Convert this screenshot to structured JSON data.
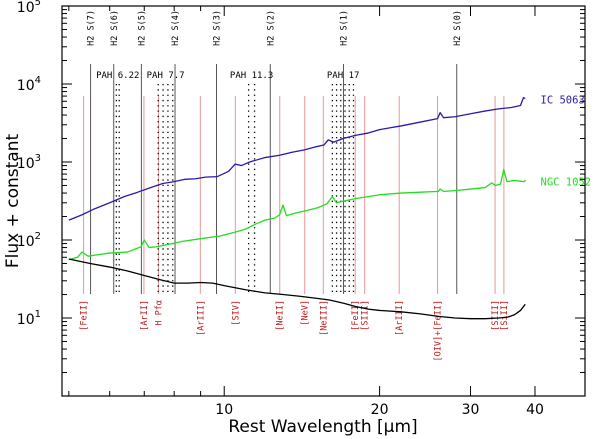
{
  "chart_data": {
    "type": "line",
    "title": "",
    "xlabel": "Rest Wavelength [μm]",
    "ylabel": "Flux + constant",
    "x_scale": "log",
    "y_scale": "log",
    "xlim": [
      4.85,
      50
    ],
    "ylim": [
      1,
      100000
    ],
    "x_ticks": [
      10,
      20,
      30,
      40
    ],
    "x_tick_labels": [
      "10",
      "20",
      "30",
      "40"
    ],
    "y_ticks": [
      10,
      100,
      1000,
      10000,
      100000
    ],
    "y_tick_labels": [
      "10¹",
      "10²",
      "10³",
      "10⁴",
      "10⁵"
    ],
    "y_tick_bases": [
      "10",
      "10",
      "10",
      "10",
      "10"
    ],
    "y_tick_exps": [
      "1",
      "2",
      "3",
      "4",
      "5"
    ],
    "grid": false,
    "series": [
      {
        "name": "IC 5063",
        "color": "#2a1aa8",
        "points": [
          [
            5.0,
            180
          ],
          [
            5.3,
            210
          ],
          [
            5.6,
            250
          ],
          [
            6.0,
            300
          ],
          [
            6.4,
            360
          ],
          [
            6.8,
            410
          ],
          [
            7.2,
            470
          ],
          [
            7.6,
            530
          ],
          [
            8.0,
            560
          ],
          [
            8.4,
            600
          ],
          [
            8.8,
            610
          ],
          [
            9.2,
            640
          ],
          [
            9.7,
            650
          ],
          [
            10.2,
            760
          ],
          [
            10.5,
            940
          ],
          [
            10.8,
            900
          ],
          [
            11.2,
            1000
          ],
          [
            12.0,
            1140
          ],
          [
            12.8,
            1220
          ],
          [
            13.5,
            1330
          ],
          [
            14.3,
            1430
          ],
          [
            15.0,
            1560
          ],
          [
            15.6,
            1650
          ],
          [
            15.9,
            1920
          ],
          [
            16.3,
            1800
          ],
          [
            17.0,
            2000
          ],
          [
            18.0,
            2200
          ],
          [
            19.0,
            2350
          ],
          [
            20.0,
            2600
          ],
          [
            22.0,
            2900
          ],
          [
            24.0,
            3250
          ],
          [
            25.9,
            3600
          ],
          [
            26.2,
            4300
          ],
          [
            26.6,
            3700
          ],
          [
            28.0,
            3800
          ],
          [
            30.0,
            4150
          ],
          [
            32.0,
            4500
          ],
          [
            34.0,
            4800
          ],
          [
            36.0,
            5000
          ],
          [
            37.5,
            5300
          ],
          [
            38.0,
            6700
          ],
          [
            38.3,
            6500
          ]
        ]
      },
      {
        "name": "NGC 1052",
        "color": "#22dd22",
        "points": [
          [
            5.0,
            56
          ],
          [
            5.2,
            60
          ],
          [
            5.3,
            70
          ],
          [
            5.45,
            62
          ],
          [
            5.7,
            65
          ],
          [
            6.0,
            68
          ],
          [
            6.5,
            70
          ],
          [
            6.9,
            82
          ],
          [
            7.0,
            100
          ],
          [
            7.15,
            80
          ],
          [
            7.4,
            82
          ],
          [
            7.8,
            88
          ],
          [
            8.3,
            96
          ],
          [
            9.0,
            104
          ],
          [
            9.8,
            112
          ],
          [
            10.5,
            126
          ],
          [
            11.0,
            138
          ],
          [
            11.5,
            160
          ],
          [
            12.0,
            180
          ],
          [
            12.5,
            190
          ],
          [
            12.8,
            210
          ],
          [
            13.0,
            280
          ],
          [
            13.2,
            205
          ],
          [
            13.7,
            220
          ],
          [
            14.5,
            240
          ],
          [
            15.2,
            260
          ],
          [
            15.8,
            290
          ],
          [
            16.2,
            360
          ],
          [
            16.5,
            300
          ],
          [
            17.2,
            320
          ],
          [
            18.0,
            340
          ],
          [
            19.0,
            360
          ],
          [
            20.0,
            380
          ],
          [
            22.0,
            400
          ],
          [
            24.0,
            410
          ],
          [
            26.0,
            420
          ],
          [
            26.2,
            450
          ],
          [
            26.6,
            420
          ],
          [
            28.0,
            430
          ],
          [
            30.0,
            450
          ],
          [
            32.0,
            470
          ],
          [
            33.0,
            540
          ],
          [
            33.5,
            500
          ],
          [
            34.3,
            520
          ],
          [
            34.8,
            800
          ],
          [
            35.3,
            560
          ],
          [
            36.5,
            580
          ],
          [
            38.0,
            560
          ],
          [
            38.4,
            580
          ]
        ]
      },
      {
        "name": "",
        "color": "#000000",
        "points": [
          [
            5.0,
            57
          ],
          [
            5.5,
            50
          ],
          [
            6.0,
            45
          ],
          [
            6.5,
            40
          ],
          [
            7.0,
            35
          ],
          [
            7.5,
            31
          ],
          [
            8.0,
            28
          ],
          [
            8.5,
            28
          ],
          [
            9.0,
            28.5
          ],
          [
            9.5,
            28
          ],
          [
            10.0,
            26
          ],
          [
            11.0,
            23
          ],
          [
            12.0,
            21
          ],
          [
            13.0,
            20
          ],
          [
            14.0,
            19
          ],
          [
            15.0,
            18
          ],
          [
            16.0,
            17
          ],
          [
            17.0,
            15.5
          ],
          [
            18.0,
            14
          ],
          [
            19.0,
            13
          ],
          [
            20.0,
            12.5
          ],
          [
            22.0,
            12
          ],
          [
            24.0,
            11.3
          ],
          [
            26.0,
            10.5
          ],
          [
            28.0,
            10
          ],
          [
            30.0,
            9.8
          ],
          [
            32.0,
            9.8
          ],
          [
            34.0,
            10
          ],
          [
            35.5,
            10.3
          ],
          [
            36.5,
            11
          ],
          [
            37.5,
            12.5
          ],
          [
            38.3,
            15
          ]
        ]
      }
    ],
    "series_labels": [
      {
        "text": "IC 5063",
        "color": "#2a1aa8",
        "x": 41,
        "y": 5600
      },
      {
        "text": "NGC 1052",
        "color": "#22dd22",
        "x": 41,
        "y": 500
      }
    ],
    "h2_lines": [
      {
        "label": "H2 S(7)",
        "x": 5.51
      },
      {
        "label": "H2 S(6)",
        "x": 6.11
      },
      {
        "label": "H2 S(5)",
        "x": 6.91
      },
      {
        "label": "H2 S(4)",
        "x": 8.03
      },
      {
        "label": "H2 S(3)",
        "x": 9.66
      },
      {
        "label": "H2 S(2)",
        "x": 12.28
      },
      {
        "label": "H2 S(1)",
        "x": 17.03
      },
      {
        "label": "H2 S(0)",
        "x": 28.22
      }
    ],
    "pah_bands": [
      {
        "label": "PAH 6.22",
        "x": 6.22,
        "x_range": [
          6.18,
          6.26
        ]
      },
      {
        "label": "PAH 7.7",
        "x": 7.7,
        "x_range": [
          7.45,
          7.95
        ]
      },
      {
        "label": "PAH 11.3",
        "x": 11.3,
        "x_range": [
          11.15,
          11.45
        ]
      },
      {
        "label": "PAH 17",
        "x": 17.0,
        "x_range": [
          16.2,
          17.8
        ]
      }
    ],
    "ionic_lines": [
      {
        "label": "[FeII]",
        "x": 5.34
      },
      {
        "label": "[ArII]",
        "x": 6.99
      },
      {
        "label": "H Pfα",
        "x": 7.46
      },
      {
        "label": "[ArIII]",
        "x": 8.99
      },
      {
        "label": "[SIV]",
        "x": 10.51
      },
      {
        "label": "[NeII]",
        "x": 12.81
      },
      {
        "label": "[NeV]",
        "x": 14.32
      },
      {
        "label": "[NeIII]",
        "x": 15.56
      },
      {
        "label": "[FeII]",
        "x": 17.94
      },
      {
        "label": "[SIII]",
        "x": 18.71
      },
      {
        "label": "[ArIII]",
        "x": 21.83
      },
      {
        "label": "[OIV]+[FeII]",
        "x": 25.9
      },
      {
        "label": "[SIII]",
        "x": 33.48
      },
      {
        "label": "[SiII]",
        "x": 34.82
      }
    ],
    "colors": {
      "ionic_line": "#e8a0a0",
      "ionic_label": "#c01818",
      "h2_line": "#444444",
      "pah_dots": "#000000"
    }
  }
}
